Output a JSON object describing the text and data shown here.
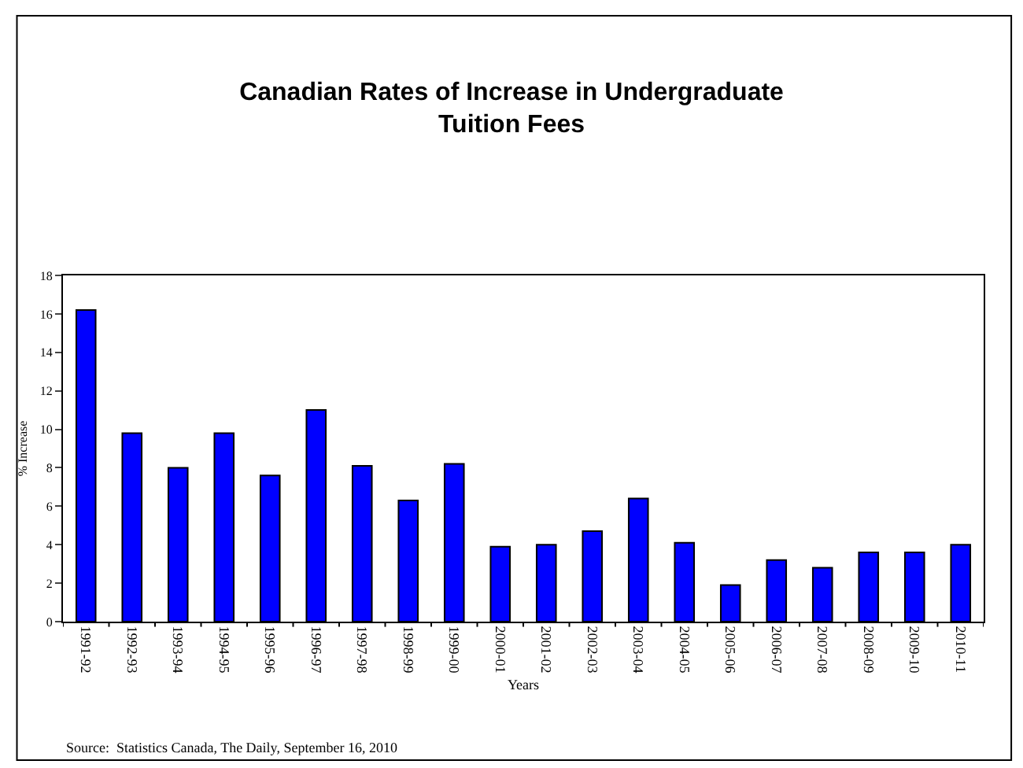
{
  "chart_data": {
    "type": "bar",
    "title": "Canadian Rates of Increase in Undergraduate\nTuition Fees",
    "xlabel": "Years",
    "ylabel": "% Increase",
    "categories": [
      "1991-92",
      "1992-93",
      "1993-94",
      "1994-95",
      "1995-96",
      "1996-97",
      "1997-98",
      "1998-99",
      "1999-00",
      "2000-01",
      "2001-02",
      "2002-03",
      "2003-04",
      "2004-05",
      "2005-06",
      "2006-07",
      "2007-08",
      "2008-09",
      "2009-10",
      "2010-11"
    ],
    "values": [
      16.2,
      9.8,
      8.0,
      9.8,
      7.6,
      11.0,
      8.1,
      6.3,
      8.2,
      3.9,
      4.0,
      4.7,
      6.4,
      4.1,
      1.9,
      3.2,
      2.8,
      3.6,
      3.6,
      4.0
    ],
    "color": "#0000ff",
    "ylim": [
      0,
      18
    ],
    "yticks": [
      0,
      2,
      4,
      6,
      8,
      10,
      12,
      14,
      16,
      18
    ],
    "annotations": [
      "Source:  Statistics Canada, The Daily, September 16, 2010"
    ]
  }
}
